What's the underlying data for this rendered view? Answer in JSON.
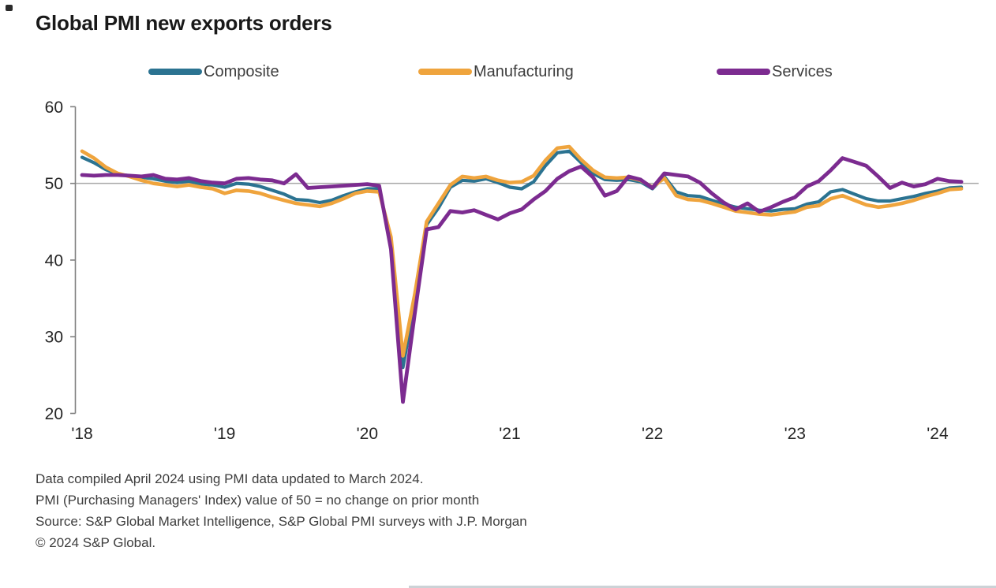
{
  "title": "Global PMI new exports orders",
  "colors": {
    "composite": "#2b7391",
    "manufacturing": "#efa43d",
    "services": "#7c2b90",
    "axis": "#808080",
    "gridline": "#a9a9a9",
    "title_text": "#191919",
    "footnote_text": "#3d3d3d"
  },
  "chart_data": {
    "type": "line",
    "title": "Global PMI new exports orders",
    "x_frequency": "monthly",
    "x_start": "2018-01",
    "x_end": "2024-03",
    "x_tick_labels": [
      "'18",
      "'19",
      "'20",
      "'21",
      "'22",
      "'23",
      "'24"
    ],
    "ylim": [
      20,
      60
    ],
    "y_ticks": [
      20,
      30,
      40,
      50,
      60
    ],
    "reference_line_y": 50,
    "grid": "single horizontal reference line at 50",
    "legend_position": "top",
    "series": [
      {
        "name": "Composite",
        "color": "#2b7391",
        "values": [
          53.4,
          52.7,
          51.8,
          51.2,
          51.0,
          50.8,
          50.6,
          50.3,
          50.1,
          50.3,
          49.9,
          49.8,
          49.5,
          50.0,
          49.9,
          49.6,
          49.1,
          48.6,
          47.9,
          47.8,
          47.5,
          47.8,
          48.4,
          48.9,
          49.3,
          49.3,
          42.2,
          26.0,
          34.5,
          44.6,
          46.8,
          49.5,
          50.4,
          50.3,
          50.6,
          50.1,
          49.5,
          49.3,
          50.2,
          52.3,
          54.0,
          54.2,
          52.7,
          51.3,
          50.5,
          50.4,
          50.5,
          50.2,
          49.3,
          50.9,
          48.9,
          48.4,
          48.3,
          47.8,
          47.3,
          46.9,
          46.7,
          46.5,
          46.4,
          46.6,
          46.7,
          47.3,
          47.6,
          48.9,
          49.2,
          48.6,
          48.0,
          47.7,
          47.7,
          48.0,
          48.3,
          48.7,
          49.0,
          49.4,
          49.5
        ]
      },
      {
        "name": "Manufacturing",
        "color": "#efa43d",
        "values": [
          54.2,
          53.3,
          52.1,
          51.3,
          50.9,
          50.4,
          50.0,
          49.8,
          49.6,
          49.8,
          49.5,
          49.3,
          48.7,
          49.1,
          49.0,
          48.7,
          48.2,
          47.8,
          47.4,
          47.2,
          47.0,
          47.4,
          48.0,
          48.7,
          49.0,
          48.9,
          43.0,
          27.5,
          35.5,
          45.0,
          47.4,
          49.8,
          50.9,
          50.7,
          50.9,
          50.4,
          50.1,
          50.2,
          51.0,
          53.0,
          54.6,
          54.8,
          53.1,
          51.7,
          50.8,
          50.7,
          50.8,
          50.4,
          49.5,
          50.7,
          48.4,
          47.9,
          47.8,
          47.4,
          46.9,
          46.4,
          46.2,
          46.0,
          45.9,
          46.1,
          46.3,
          46.9,
          47.1,
          48.0,
          48.4,
          47.8,
          47.2,
          46.9,
          47.1,
          47.4,
          47.8,
          48.3,
          48.7,
          49.2,
          49.3
        ]
      },
      {
        "name": "Services",
        "color": "#7c2b90",
        "values": [
          51.1,
          51.0,
          51.1,
          51.1,
          51.0,
          50.9,
          51.1,
          50.6,
          50.5,
          50.7,
          50.3,
          50.1,
          50.0,
          50.6,
          50.7,
          50.5,
          50.4,
          50.0,
          51.2,
          49.4,
          49.5,
          49.6,
          49.7,
          49.8,
          49.9,
          49.7,
          41.4,
          21.5,
          33.0,
          44.0,
          44.3,
          46.4,
          46.2,
          46.5,
          45.9,
          45.3,
          46.1,
          46.6,
          47.9,
          49.0,
          50.6,
          51.6,
          52.2,
          50.8,
          48.4,
          49.0,
          50.9,
          50.5,
          49.4,
          51.3,
          51.1,
          50.9,
          50.1,
          48.7,
          47.5,
          46.6,
          47.4,
          46.3,
          46.9,
          47.6,
          48.2,
          49.6,
          50.3,
          51.7,
          53.3,
          52.8,
          52.3,
          50.9,
          49.4,
          50.1,
          49.6,
          49.9,
          50.6,
          50.3,
          50.2
        ]
      }
    ]
  },
  "footnotes": [
    "Data compiled April 2024 using PMI data updated to March 2024.",
    "PMI (Purchasing Managers' Index) value of 50 = no change on prior month",
    "Source: S&P Global Market Intelligence, S&P Global PMI surveys with J.P. Morgan",
    "© 2024 S&P Global."
  ]
}
